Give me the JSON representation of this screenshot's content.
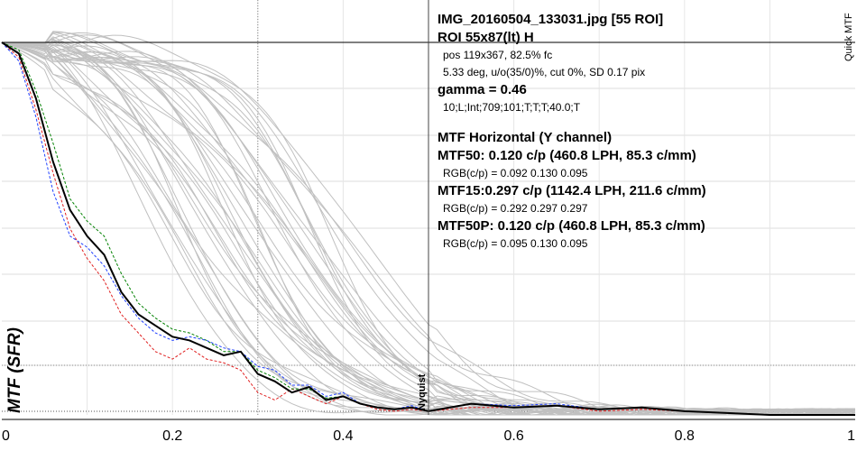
{
  "chart_data": {
    "type": "line",
    "ylabel": "MTF (SFR)",
    "side_label": "Quick MTF",
    "xlim": [
      0,
      1
    ],
    "x_ticks": [
      "0",
      "0.2",
      "0.4",
      "0.6",
      "0.8",
      "1"
    ],
    "nyquist": {
      "label": "Nyquist",
      "x": 0.5
    },
    "info": {
      "title": "IMG_20160504_133031.jpg [55 ROI]",
      "roi": "ROI 55x87(lt) H",
      "pos": "pos 119x367, 82.5% fc",
      "deg": "5.33 deg, u/o(35/0)%, cut 0%, SD 0.17 pix",
      "gamma": "gamma = 0.46",
      "params": "10;L;Int;709;101;T;T;T;40.0;T",
      "mtf_title": "MTF Horizontal (Y channel)",
      "mtf50": "MTF50: 0.120 c/p (460.8 LPH, 85.3 c/mm)",
      "mtf50_rgb": "RGB(c/p) = 0.092 0.130 0.095",
      "mtf15": "MTF15:0.297 c/p (1142.4 LPH, 211.6 c/mm)",
      "mtf15_rgb": "RGB(c/p) = 0.292 0.297 0.297",
      "mtf50p": "MTF50P: 0.120 c/p (460.8 LPH, 85.3 c/mm)",
      "mtf50p_rgb": "RGB(c/p) = 0.095 0.130 0.095"
    },
    "series": [
      {
        "color": "#000000",
        "x": [
          0,
          0.02,
          0.04,
          0.06,
          0.08,
          0.1,
          0.12,
          0.14,
          0.16,
          0.18,
          0.2,
          0.22,
          0.24,
          0.26,
          0.28,
          0.3,
          0.32,
          0.34,
          0.36,
          0.38,
          0.4,
          0.42,
          0.44,
          0.46,
          0.48,
          0.5,
          0.55,
          0.6,
          0.65,
          0.7,
          0.75,
          0.8,
          0.85,
          0.9,
          0.95,
          1.0
        ],
        "y": [
          1.0,
          0.97,
          0.85,
          0.68,
          0.55,
          0.48,
          0.43,
          0.33,
          0.27,
          0.24,
          0.21,
          0.2,
          0.18,
          0.16,
          0.17,
          0.11,
          0.09,
          0.06,
          0.075,
          0.04,
          0.05,
          0.03,
          0.02,
          0.015,
          0.02,
          0.01,
          0.03,
          0.02,
          0.025,
          0.015,
          0.02,
          0.01,
          0.005,
          0.0,
          0.0,
          0.0
        ]
      },
      {
        "color": "#008000",
        "x": [
          0,
          0.02,
          0.04,
          0.06,
          0.08,
          0.1,
          0.12,
          0.14,
          0.16,
          0.18,
          0.2,
          0.22,
          0.24,
          0.26,
          0.28,
          0.3,
          0.32,
          0.34,
          0.36,
          0.38,
          0.4,
          0.42,
          0.44,
          0.46,
          0.48,
          0.5,
          0.55,
          0.6,
          0.65,
          0.7,
          0.75,
          0.8,
          0.85,
          0.9,
          0.95,
          1.0
        ],
        "y": [
          1.0,
          0.98,
          0.87,
          0.73,
          0.58,
          0.52,
          0.48,
          0.38,
          0.3,
          0.26,
          0.23,
          0.22,
          0.2,
          0.17,
          0.17,
          0.12,
          0.1,
          0.07,
          0.07,
          0.045,
          0.05,
          0.03,
          0.02,
          0.015,
          0.02,
          0.01,
          0.03,
          0.02,
          0.025,
          0.015,
          0.02,
          0.01,
          0.005,
          0.0,
          0.0,
          0.0
        ]
      },
      {
        "color": "#2040ff",
        "x": [
          0,
          0.02,
          0.04,
          0.06,
          0.08,
          0.1,
          0.12,
          0.14,
          0.16,
          0.18,
          0.2,
          0.22,
          0.24,
          0.26,
          0.28,
          0.3,
          0.32,
          0.34,
          0.36,
          0.38,
          0.4,
          0.42,
          0.44,
          0.46,
          0.48,
          0.5,
          0.55,
          0.6,
          0.65,
          0.7,
          0.75,
          0.8,
          0.85,
          0.9,
          0.95,
          1.0
        ],
        "y": [
          1.0,
          0.95,
          0.8,
          0.6,
          0.48,
          0.45,
          0.4,
          0.32,
          0.26,
          0.22,
          0.2,
          0.21,
          0.2,
          0.18,
          0.17,
          0.13,
          0.12,
          0.08,
          0.08,
          0.05,
          0.06,
          0.03,
          0.02,
          0.015,
          0.025,
          0.01,
          0.03,
          0.025,
          0.03,
          0.015,
          0.02,
          0.01,
          0.005,
          0.0,
          0.0,
          0.0
        ]
      },
      {
        "color": "#e02020",
        "x": [
          0,
          0.02,
          0.04,
          0.06,
          0.08,
          0.1,
          0.12,
          0.14,
          0.16,
          0.18,
          0.2,
          0.22,
          0.24,
          0.26,
          0.28,
          0.3,
          0.32,
          0.34,
          0.36,
          0.38,
          0.4,
          0.42,
          0.44,
          0.46,
          0.48,
          0.5,
          0.55,
          0.6,
          0.65,
          0.7,
          0.75,
          0.8,
          0.85,
          0.9,
          0.95,
          1.0
        ],
        "y": [
          1.0,
          0.96,
          0.82,
          0.65,
          0.5,
          0.42,
          0.36,
          0.27,
          0.22,
          0.17,
          0.15,
          0.18,
          0.15,
          0.14,
          0.12,
          0.06,
          0.04,
          0.07,
          0.05,
          0.03,
          0.05,
          0.03,
          0.015,
          0.01,
          0.015,
          0.01,
          0.02,
          0.02,
          0.025,
          0.01,
          0.015,
          0.01,
          0.005,
          0.0,
          0.0,
          0.0
        ]
      }
    ]
  }
}
